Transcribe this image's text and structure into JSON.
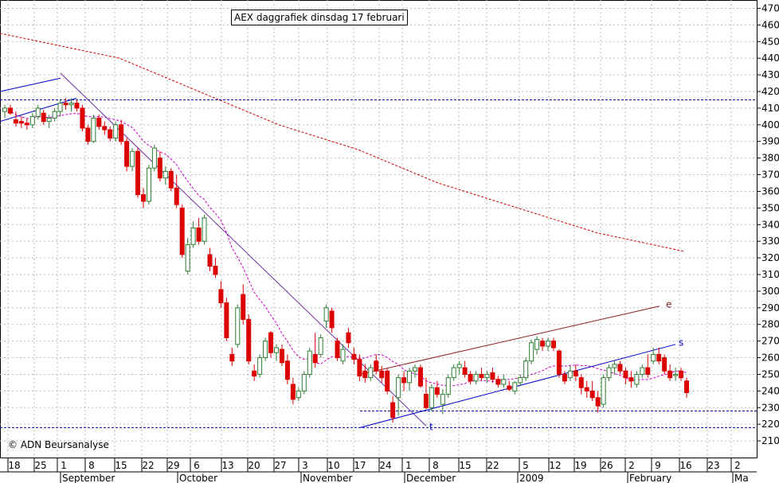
{
  "chart_data": {
    "type": "candlestick",
    "title": "AEX daggrafiek dinsdag 17 februari",
    "credit": "© ADN Beursanalyse",
    "ylim": [
      200,
      475
    ],
    "y_ticks": [
      210,
      220,
      230,
      240,
      250,
      260,
      270,
      280,
      290,
      300,
      310,
      320,
      330,
      340,
      350,
      360,
      370,
      380,
      390,
      400,
      410,
      420,
      430,
      440,
      450,
      460,
      470
    ],
    "x_day_labels": [
      "18",
      "25",
      "1",
      "8",
      "15",
      "22",
      "29",
      "6",
      "13",
      "20",
      "27",
      "3",
      "10",
      "17",
      "24",
      "1",
      "8",
      "15",
      "22",
      "5",
      "12",
      "19",
      "26",
      "2",
      "9",
      "16",
      "23",
      "2"
    ],
    "x_month_labels": [
      "September",
      "October",
      "November",
      "December",
      "2009",
      "February",
      "Ma"
    ],
    "grid": true,
    "colors": {
      "up": "#2e7d32",
      "down": "#dd0000",
      "ma_long": "#cc0000",
      "ma_mid": "#cc00cc",
      "trend_blue": "#0000cc",
      "trend_purple": "#7030a0",
      "trend_brown": "#8b2020",
      "level": "#0000aa"
    },
    "horizontal_levels": [
      415,
      228,
      218
    ],
    "trendline_labels": [
      "e",
      "s",
      "t"
    ],
    "candles": [
      {
        "o": 408,
        "h": 412,
        "l": 404,
        "c": 410
      },
      {
        "o": 410,
        "h": 412,
        "l": 406,
        "c": 407
      },
      {
        "o": 403,
        "h": 408,
        "l": 399,
        "c": 401
      },
      {
        "o": 402,
        "h": 405,
        "l": 398,
        "c": 401
      },
      {
        "o": 401,
        "h": 404,
        "l": 397,
        "c": 400
      },
      {
        "o": 400,
        "h": 407,
        "l": 398,
        "c": 405
      },
      {
        "o": 405,
        "h": 412,
        "l": 403,
        "c": 410
      },
      {
        "o": 407,
        "h": 409,
        "l": 400,
        "c": 402
      },
      {
        "o": 402,
        "h": 406,
        "l": 398,
        "c": 404
      },
      {
        "o": 404,
        "h": 410,
        "l": 402,
        "c": 408
      },
      {
        "o": 408,
        "h": 415,
        "l": 405,
        "c": 413
      },
      {
        "o": 413,
        "h": 416,
        "l": 409,
        "c": 412
      },
      {
        "o": 412,
        "h": 416,
        "l": 408,
        "c": 413
      },
      {
        "o": 413,
        "h": 415,
        "l": 408,
        "c": 410
      },
      {
        "o": 410,
        "h": 412,
        "l": 396,
        "c": 398
      },
      {
        "o": 398,
        "h": 400,
        "l": 388,
        "c": 390
      },
      {
        "o": 390,
        "h": 406,
        "l": 389,
        "c": 404
      },
      {
        "o": 404,
        "h": 406,
        "l": 397,
        "c": 399
      },
      {
        "o": 399,
        "h": 402,
        "l": 394,
        "c": 397
      },
      {
        "o": 397,
        "h": 399,
        "l": 390,
        "c": 392
      },
      {
        "o": 392,
        "h": 402,
        "l": 390,
        "c": 400
      },
      {
        "o": 400,
        "h": 403,
        "l": 388,
        "c": 390
      },
      {
        "o": 390,
        "h": 392,
        "l": 372,
        "c": 375
      },
      {
        "o": 375,
        "h": 386,
        "l": 372,
        "c": 384
      },
      {
        "o": 384,
        "h": 386,
        "l": 356,
        "c": 358
      },
      {
        "o": 358,
        "h": 362,
        "l": 350,
        "c": 354
      },
      {
        "o": 354,
        "h": 376,
        "l": 352,
        "c": 374
      },
      {
        "o": 374,
        "h": 388,
        "l": 372,
        "c": 386
      },
      {
        "o": 380,
        "h": 384,
        "l": 366,
        "c": 368
      },
      {
        "o": 368,
        "h": 375,
        "l": 364,
        "c": 372
      },
      {
        "o": 372,
        "h": 374,
        "l": 360,
        "c": 362
      },
      {
        "o": 362,
        "h": 370,
        "l": 350,
        "c": 352
      },
      {
        "o": 350,
        "h": 352,
        "l": 320,
        "c": 322
      },
      {
        "o": 312,
        "h": 332,
        "l": 310,
        "c": 328
      },
      {
        "o": 328,
        "h": 342,
        "l": 326,
        "c": 338
      },
      {
        "o": 338,
        "h": 344,
        "l": 328,
        "c": 330
      },
      {
        "o": 330,
        "h": 346,
        "l": 328,
        "c": 344
      },
      {
        "o": 322,
        "h": 326,
        "l": 312,
        "c": 315
      },
      {
        "o": 315,
        "h": 320,
        "l": 308,
        "c": 310
      },
      {
        "o": 301,
        "h": 306,
        "l": 290,
        "c": 293
      },
      {
        "o": 293,
        "h": 296,
        "l": 270,
        "c": 272
      },
      {
        "o": 262,
        "h": 266,
        "l": 255,
        "c": 258
      },
      {
        "o": 268,
        "h": 292,
        "l": 266,
        "c": 290
      },
      {
        "o": 298,
        "h": 304,
        "l": 280,
        "c": 283
      },
      {
        "o": 283,
        "h": 286,
        "l": 256,
        "c": 258
      },
      {
        "o": 252,
        "h": 256,
        "l": 246,
        "c": 249
      },
      {
        "o": 250,
        "h": 262,
        "l": 248,
        "c": 260
      },
      {
        "o": 260,
        "h": 272,
        "l": 258,
        "c": 270
      },
      {
        "o": 275,
        "h": 276,
        "l": 260,
        "c": 263
      },
      {
        "o": 263,
        "h": 268,
        "l": 258,
        "c": 266
      },
      {
        "o": 265,
        "h": 268,
        "l": 255,
        "c": 257
      },
      {
        "o": 258,
        "h": 262,
        "l": 244,
        "c": 247
      },
      {
        "o": 244,
        "h": 248,
        "l": 232,
        "c": 235
      },
      {
        "o": 236,
        "h": 242,
        "l": 234,
        "c": 240
      },
      {
        "o": 240,
        "h": 252,
        "l": 238,
        "c": 250
      },
      {
        "o": 250,
        "h": 266,
        "l": 248,
        "c": 264
      },
      {
        "o": 262,
        "h": 275,
        "l": 254,
        "c": 257
      },
      {
        "o": 262,
        "h": 274,
        "l": 260,
        "c": 272
      },
      {
        "o": 282,
        "h": 292,
        "l": 278,
        "c": 290
      },
      {
        "o": 288,
        "h": 290,
        "l": 275,
        "c": 278
      },
      {
        "o": 270,
        "h": 272,
        "l": 258,
        "c": 260
      },
      {
        "o": 258,
        "h": 268,
        "l": 256,
        "c": 265
      },
      {
        "o": 275,
        "h": 278,
        "l": 266,
        "c": 269
      },
      {
        "o": 262,
        "h": 266,
        "l": 256,
        "c": 259
      },
      {
        "o": 259,
        "h": 262,
        "l": 246,
        "c": 249
      },
      {
        "o": 252,
        "h": 256,
        "l": 245,
        "c": 248
      },
      {
        "o": 248,
        "h": 256,
        "l": 246,
        "c": 254
      },
      {
        "o": 258,
        "h": 262,
        "l": 250,
        "c": 252
      },
      {
        "o": 252,
        "h": 255,
        "l": 245,
        "c": 248
      },
      {
        "o": 252,
        "h": 254,
        "l": 238,
        "c": 240
      },
      {
        "o": 233,
        "h": 237,
        "l": 221,
        "c": 224
      },
      {
        "o": 236,
        "h": 250,
        "l": 225,
        "c": 248
      },
      {
        "o": 248,
        "h": 252,
        "l": 240,
        "c": 245
      },
      {
        "o": 245,
        "h": 254,
        "l": 240,
        "c": 252
      },
      {
        "o": 252,
        "h": 256,
        "l": 248,
        "c": 254
      },
      {
        "o": 254,
        "h": 256,
        "l": 242,
        "c": 243
      },
      {
        "o": 238,
        "h": 248,
        "l": 229,
        "c": 230
      },
      {
        "o": 230,
        "h": 244,
        "l": 228,
        "c": 242
      },
      {
        "o": 242,
        "h": 246,
        "l": 236,
        "c": 238
      },
      {
        "o": 232,
        "h": 241,
        "l": 226,
        "c": 238
      },
      {
        "o": 238,
        "h": 250,
        "l": 236,
        "c": 248
      },
      {
        "o": 248,
        "h": 256,
        "l": 246,
        "c": 254
      },
      {
        "o": 254,
        "h": 258,
        "l": 250,
        "c": 256
      },
      {
        "o": 254,
        "h": 258,
        "l": 248,
        "c": 250
      },
      {
        "o": 250,
        "h": 252,
        "l": 244,
        "c": 246
      },
      {
        "o": 246,
        "h": 252,
        "l": 244,
        "c": 250
      },
      {
        "o": 250,
        "h": 254,
        "l": 246,
        "c": 248
      },
      {
        "o": 248,
        "h": 252,
        "l": 245,
        "c": 250
      },
      {
        "o": 251,
        "h": 254,
        "l": 245,
        "c": 247
      },
      {
        "o": 247,
        "h": 249,
        "l": 242,
        "c": 244
      },
      {
        "o": 244,
        "h": 250,
        "l": 242,
        "c": 247
      },
      {
        "o": 243,
        "h": 246,
        "l": 240,
        "c": 241
      },
      {
        "o": 240,
        "h": 246,
        "l": 238,
        "c": 245
      },
      {
        "o": 245,
        "h": 250,
        "l": 243,
        "c": 248
      },
      {
        "o": 248,
        "h": 260,
        "l": 246,
        "c": 258
      },
      {
        "o": 258,
        "h": 271,
        "l": 256,
        "c": 269
      },
      {
        "o": 265,
        "h": 273,
        "l": 262,
        "c": 271
      },
      {
        "o": 270,
        "h": 272,
        "l": 264,
        "c": 267
      },
      {
        "o": 267,
        "h": 272,
        "l": 264,
        "c": 270
      },
      {
        "o": 270,
        "h": 272,
        "l": 264,
        "c": 266
      },
      {
        "o": 264,
        "h": 265,
        "l": 248,
        "c": 250
      },
      {
        "o": 250,
        "h": 252,
        "l": 244,
        "c": 246
      },
      {
        "o": 248,
        "h": 255,
        "l": 246,
        "c": 252
      },
      {
        "o": 252,
        "h": 256,
        "l": 246,
        "c": 249
      },
      {
        "o": 248,
        "h": 250,
        "l": 238,
        "c": 242
      },
      {
        "o": 242,
        "h": 246,
        "l": 236,
        "c": 240
      },
      {
        "o": 240,
        "h": 246,
        "l": 234,
        "c": 236
      },
      {
        "o": 236,
        "h": 240,
        "l": 227,
        "c": 231
      },
      {
        "o": 232,
        "h": 250,
        "l": 230,
        "c": 248
      },
      {
        "o": 248,
        "h": 256,
        "l": 246,
        "c": 254
      },
      {
        "o": 254,
        "h": 258,
        "l": 250,
        "c": 256
      },
      {
        "o": 256,
        "h": 258,
        "l": 250,
        "c": 252
      },
      {
        "o": 252,
        "h": 254,
        "l": 244,
        "c": 248
      },
      {
        "o": 248,
        "h": 252,
        "l": 242,
        "c": 246
      },
      {
        "o": 244,
        "h": 252,
        "l": 242,
        "c": 250
      },
      {
        "o": 250,
        "h": 256,
        "l": 248,
        "c": 254
      },
      {
        "o": 254,
        "h": 262,
        "l": 248,
        "c": 250
      },
      {
        "o": 258,
        "h": 266,
        "l": 256,
        "c": 262
      },
      {
        "o": 262,
        "h": 266,
        "l": 256,
        "c": 258
      },
      {
        "o": 260,
        "h": 262,
        "l": 250,
        "c": 252
      },
      {
        "o": 252,
        "h": 256,
        "l": 246,
        "c": 248
      },
      {
        "o": 250,
        "h": 254,
        "l": 246,
        "c": 250
      },
      {
        "o": 252,
        "h": 254,
        "l": 246,
        "c": 248
      },
      {
        "o": 246,
        "h": 248,
        "l": 236,
        "c": 239
      }
    ]
  }
}
